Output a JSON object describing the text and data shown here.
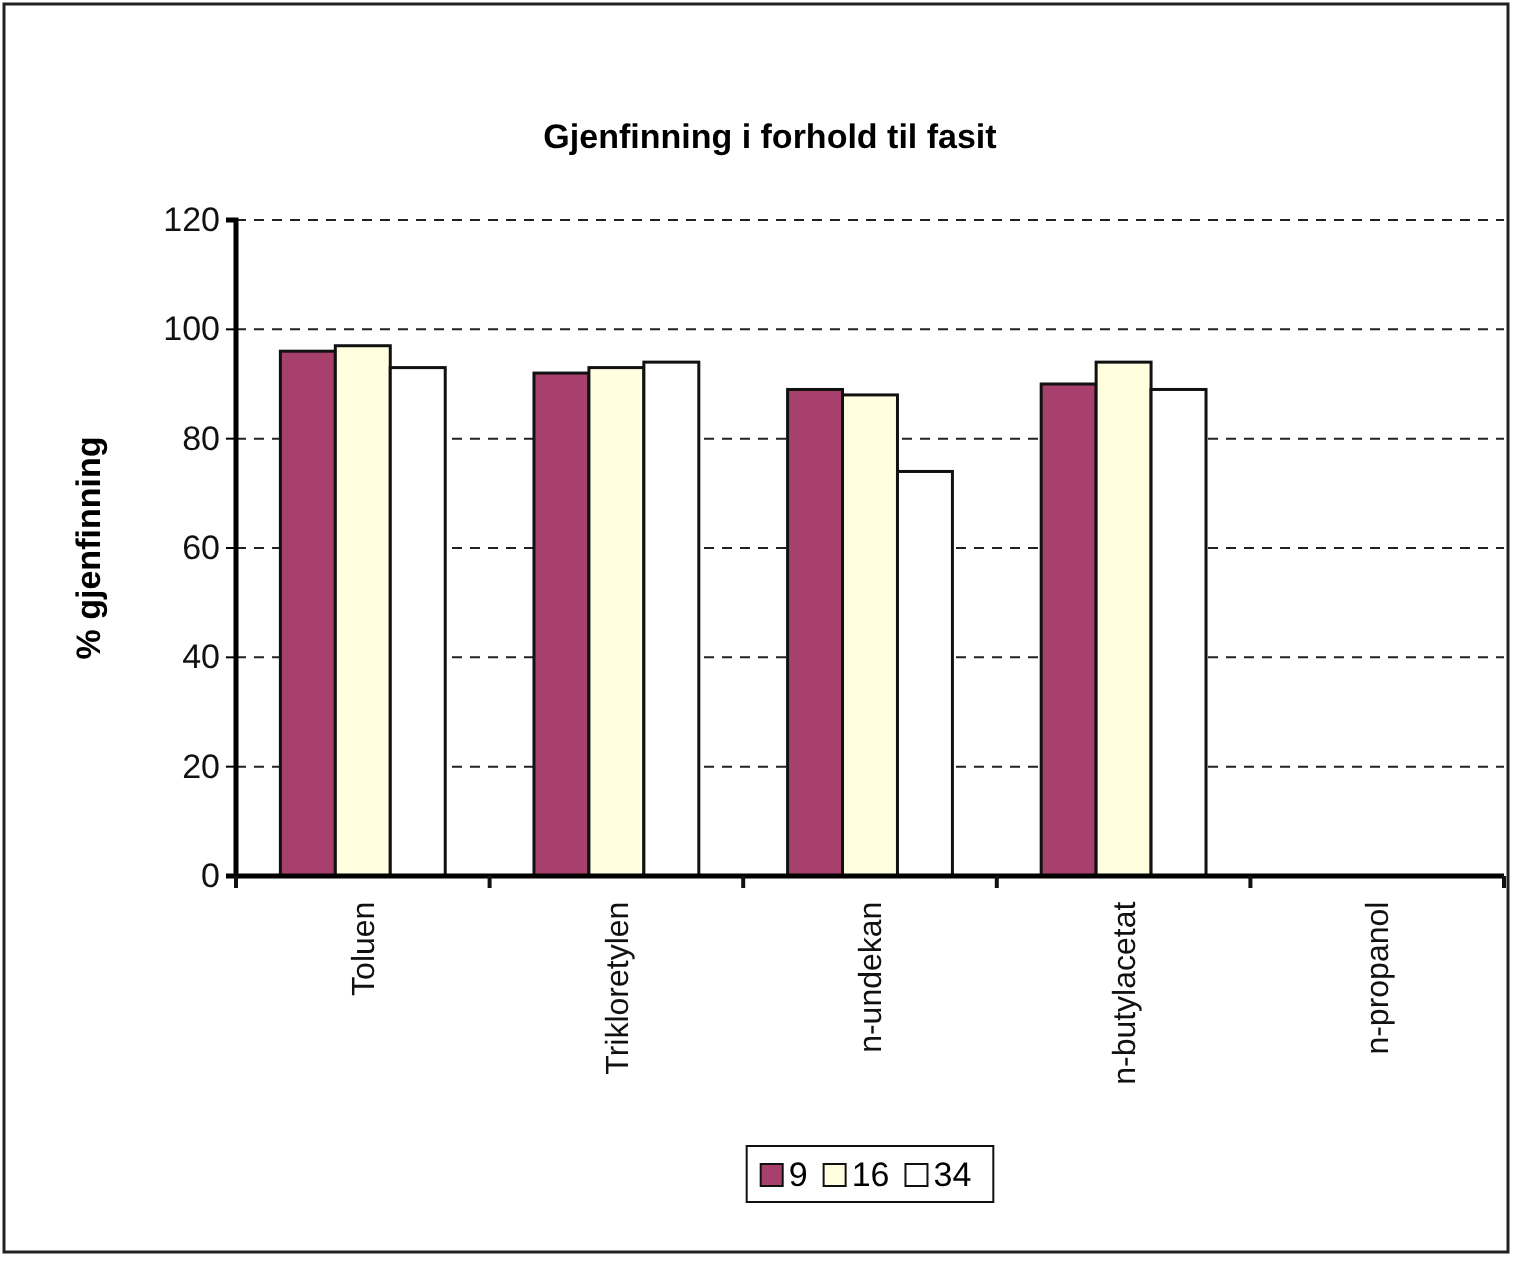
{
  "chart_data": {
    "type": "bar",
    "title": "Gjenfinning i forhold til fasit",
    "ylabel": "% gjenfinning",
    "categories": [
      "Toluen",
      "Trikloretylen",
      "n-undekan",
      "n-butylacetat",
      "n-propanol"
    ],
    "series": [
      {
        "name": "9",
        "color": "#a8406e",
        "values": [
          96,
          92,
          89,
          90,
          null
        ]
      },
      {
        "name": "16",
        "color": "#ffffe0",
        "values": [
          97,
          93,
          88,
          94,
          null
        ]
      },
      {
        "name": "34",
        "color": "#ffffff",
        "values": [
          93,
          94,
          74,
          89,
          null
        ]
      }
    ],
    "ylim": [
      0,
      120
    ],
    "yticks": [
      0,
      20,
      40,
      60,
      80,
      100,
      120
    ],
    "grid": "y",
    "legend": "bottom"
  }
}
